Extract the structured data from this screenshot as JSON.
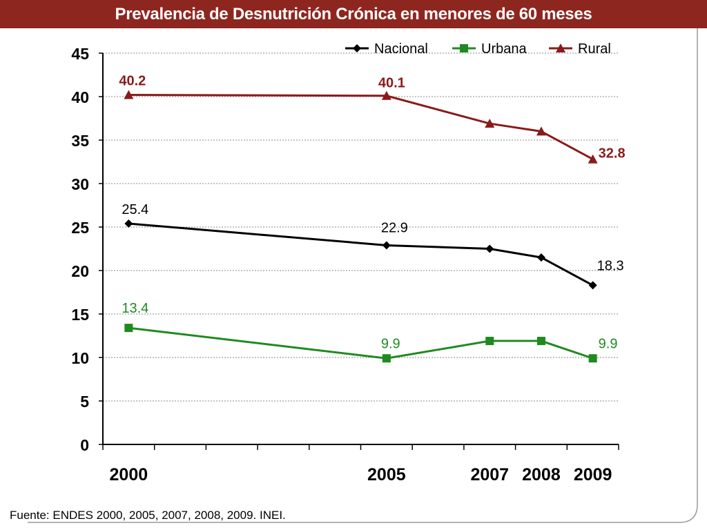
{
  "page": {
    "title": "Prevalencia de Desnutrición Crónica en menores de 60 meses",
    "footnote": "Fuente: ENDES 2000, 2005, 2007, 2008, 2009. INEI."
  },
  "chart_data": {
    "type": "line",
    "title": "Prevalencia de Desnutrición Crónica en menores de 60 meses",
    "xlabel": "",
    "ylabel": "",
    "x": [
      2000,
      2005,
      2007,
      2008,
      2009
    ],
    "x_tick_labels": [
      "2000",
      "2005",
      "2007",
      "2008",
      "2009"
    ],
    "x_range": [
      1999.5,
      2009.5
    ],
    "ylim": [
      0,
      45
    ],
    "y_ticks": [
      0,
      5,
      10,
      15,
      20,
      25,
      30,
      35,
      40,
      45
    ],
    "grid": "horizontal-dotted",
    "legend_position": "top-right",
    "series": [
      {
        "name": "Nacional",
        "color": "#000000",
        "marker": "diamond",
        "values": [
          25.4,
          22.9,
          22.5,
          21.5,
          18.3
        ],
        "labels": [
          "25.4",
          "22.9",
          "",
          "",
          "18.3"
        ]
      },
      {
        "name": "Urbana",
        "color": "#1f8a1f",
        "marker": "square",
        "values": [
          13.4,
          9.9,
          11.9,
          11.9,
          9.9
        ],
        "labels": [
          "13.4",
          "9.9",
          "",
          "",
          "9.9"
        ]
      },
      {
        "name": "Rural",
        "color": "#8b1a1a",
        "marker": "triangle",
        "values": [
          40.2,
          40.1,
          36.9,
          36.0,
          32.8
        ],
        "labels": [
          "40.2",
          "40.1",
          "",
          "",
          "32.8"
        ]
      }
    ]
  }
}
